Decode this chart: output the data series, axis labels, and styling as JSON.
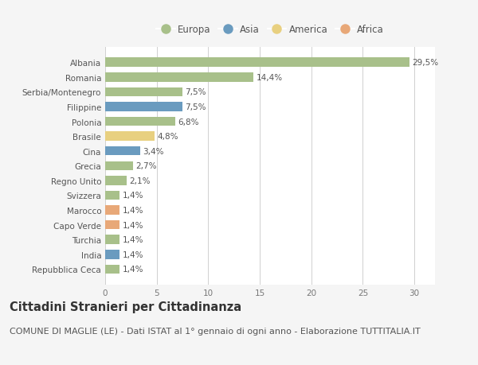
{
  "countries": [
    "Albania",
    "Romania",
    "Serbia/Montenegro",
    "Filippine",
    "Polonia",
    "Brasile",
    "Cina",
    "Grecia",
    "Regno Unito",
    "Svizzera",
    "Marocco",
    "Capo Verde",
    "Turchia",
    "India",
    "Repubblica Ceca"
  ],
  "values": [
    29.5,
    14.4,
    7.5,
    7.5,
    6.8,
    4.8,
    3.4,
    2.7,
    2.1,
    1.4,
    1.4,
    1.4,
    1.4,
    1.4,
    1.4
  ],
  "labels": [
    "29,5%",
    "14,4%",
    "7,5%",
    "7,5%",
    "6,8%",
    "4,8%",
    "3,4%",
    "2,7%",
    "2,1%",
    "1,4%",
    "1,4%",
    "1,4%",
    "1,4%",
    "1,4%",
    "1,4%"
  ],
  "continents": [
    "Europa",
    "Europa",
    "Europa",
    "Asia",
    "Europa",
    "America",
    "Asia",
    "Europa",
    "Europa",
    "Europa",
    "Africa",
    "Africa",
    "Europa",
    "Asia",
    "Europa"
  ],
  "continent_colors": {
    "Europa": "#a8c08a",
    "Asia": "#6a9bbf",
    "America": "#e8d080",
    "Africa": "#e8a878"
  },
  "legend_order": [
    "Europa",
    "Asia",
    "America",
    "Africa"
  ],
  "xlim": [
    0,
    32
  ],
  "xticks": [
    0,
    5,
    10,
    15,
    20,
    25,
    30
  ],
  "title": "Cittadini Stranieri per Cittadinanza",
  "subtitle": "COMUNE DI MAGLIE (LE) - Dati ISTAT al 1° gennaio di ogni anno - Elaborazione TUTTITALIA.IT",
  "background_color": "#f5f5f5",
  "bar_background": "#ffffff",
  "grid_color": "#d0d0d0",
  "title_fontsize": 10.5,
  "subtitle_fontsize": 8,
  "label_fontsize": 7.5,
  "tick_fontsize": 7.5,
  "legend_fontsize": 8.5
}
